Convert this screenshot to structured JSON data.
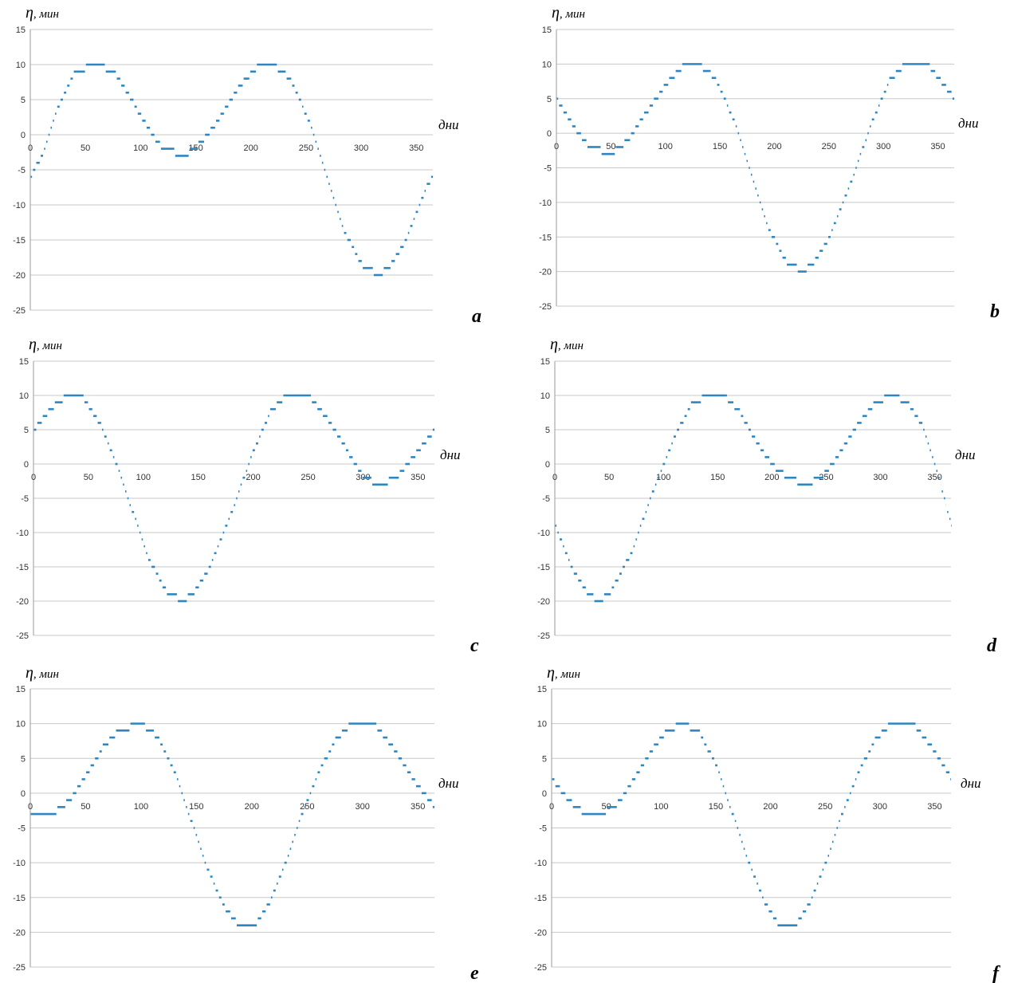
{
  "colors": {
    "series": "#2e86c1",
    "grid": "#c8c8c8",
    "axis": "#9a9a9a"
  },
  "chart_data": [
    {
      "type": "line",
      "panel_label": "a",
      "ylabel_symbol": "η",
      "ylabel_unit": ", мин",
      "xlabel": "дни",
      "xlim": [
        0,
        365
      ],
      "ylim": [
        -25,
        15
      ],
      "yticks": [
        "15",
        "10",
        "5",
        "0",
        "-5",
        "-10",
        "-15",
        "-20",
        "-25"
      ],
      "xticks": [
        "0",
        "50",
        "100",
        "150",
        "200",
        "250",
        "300",
        "350"
      ],
      "grid": true,
      "curve_points": [
        [
          0,
          -6
        ],
        [
          10,
          -3
        ],
        [
          25,
          4
        ],
        [
          40,
          9
        ],
        [
          60,
          10
        ],
        [
          75,
          9
        ],
        [
          95,
          4
        ],
        [
          110,
          0
        ],
        [
          120,
          -2
        ],
        [
          140,
          -3
        ],
        [
          155,
          -1
        ],
        [
          170,
          2
        ],
        [
          190,
          7
        ],
        [
          205,
          9.5
        ],
        [
          220,
          10
        ],
        [
          235,
          8
        ],
        [
          255,
          1
        ],
        [
          270,
          -7
        ],
        [
          285,
          -14
        ],
        [
          300,
          -18.5
        ],
        [
          315,
          -20
        ],
        [
          325,
          -19
        ],
        [
          340,
          -15
        ],
        [
          360,
          -7
        ],
        [
          365,
          -6
        ]
      ]
    },
    {
      "type": "line",
      "panel_label": "b",
      "ylabel_symbol": "η",
      "ylabel_unit": ", мин",
      "xlabel": "дни",
      "xlim": [
        0,
        365
      ],
      "ylim": [
        -25,
        15
      ],
      "yticks": [
        "15",
        "10",
        "5",
        "0",
        "-5",
        "-10",
        "-15",
        "-20",
        "-25"
      ],
      "xticks": [
        "0",
        "50",
        "100",
        "150",
        "200",
        "250",
        "300",
        "350"
      ],
      "grid": true,
      "curve_points": [
        [
          0,
          5
        ],
        [
          15,
          1
        ],
        [
          30,
          -2
        ],
        [
          50,
          -3
        ],
        [
          65,
          -1
        ],
        [
          80,
          2.5
        ],
        [
          100,
          7
        ],
        [
          115,
          9.5
        ],
        [
          130,
          10
        ],
        [
          145,
          8
        ],
        [
          165,
          1
        ],
        [
          180,
          -7
        ],
        [
          195,
          -14
        ],
        [
          210,
          -18.5
        ],
        [
          225,
          -20
        ],
        [
          235,
          -19
        ],
        [
          250,
          -15
        ],
        [
          270,
          -7
        ],
        [
          290,
          2
        ],
        [
          305,
          7.5
        ],
        [
          320,
          10
        ],
        [
          340,
          10
        ],
        [
          365,
          5
        ]
      ]
    },
    {
      "type": "line",
      "panel_label": "c",
      "ylabel_symbol": "η",
      "ylabel_unit": ", мин",
      "xlabel": "дни",
      "xlim": [
        0,
        365
      ],
      "ylim": [
        -25,
        15
      ],
      "yticks": [
        "15",
        "10",
        "5",
        "0",
        "-5",
        "-10",
        "-15",
        "-20",
        "-25"
      ],
      "xticks": [
        "0",
        "50",
        "100",
        "150",
        "200",
        "250",
        "300",
        "350"
      ],
      "grid": true,
      "curve_points": [
        [
          0,
          5
        ],
        [
          15,
          8
        ],
        [
          30,
          10
        ],
        [
          45,
          9.5
        ],
        [
          60,
          6
        ],
        [
          75,
          0
        ],
        [
          90,
          -7
        ],
        [
          105,
          -14
        ],
        [
          120,
          -18.5
        ],
        [
          135,
          -20
        ],
        [
          145,
          -19
        ],
        [
          160,
          -15
        ],
        [
          180,
          -7
        ],
        [
          200,
          2
        ],
        [
          215,
          7.5
        ],
        [
          230,
          10
        ],
        [
          250,
          10
        ],
        [
          265,
          7
        ],
        [
          285,
          2
        ],
        [
          300,
          -2
        ],
        [
          315,
          -3
        ],
        [
          330,
          -2
        ],
        [
          350,
          2
        ],
        [
          365,
          5
        ]
      ]
    },
    {
      "type": "line",
      "panel_label": "d",
      "ylabel_symbol": "η",
      "ylabel_unit": ", мин",
      "xlabel": "дни",
      "xlim": [
        0,
        365
      ],
      "ylim": [
        -25,
        15
      ],
      "yticks": [
        "15",
        "10",
        "5",
        "0",
        "-5",
        "-10",
        "-15",
        "-20",
        "-25"
      ],
      "xticks": [
        "0",
        "50",
        "100",
        "150",
        "200",
        "250",
        "300",
        "350"
      ],
      "grid": true,
      "curve_points": [
        [
          0,
          -9
        ],
        [
          15,
          -15
        ],
        [
          30,
          -19
        ],
        [
          40,
          -20
        ],
        [
          50,
          -19
        ],
        [
          70,
          -13
        ],
        [
          90,
          -4
        ],
        [
          110,
          4
        ],
        [
          125,
          8.5
        ],
        [
          140,
          10
        ],
        [
          155,
          10
        ],
        [
          170,
          7.5
        ],
        [
          190,
          2
        ],
        [
          205,
          -1
        ],
        [
          215,
          -2
        ],
        [
          230,
          -3
        ],
        [
          245,
          -2
        ],
        [
          260,
          1
        ],
        [
          280,
          6
        ],
        [
          295,
          9
        ],
        [
          310,
          10
        ],
        [
          325,
          9
        ],
        [
          340,
          5
        ],
        [
          355,
          -3
        ],
        [
          365,
          -9
        ]
      ]
    },
    {
      "type": "line",
      "panel_label": "e",
      "ylabel_symbol": "η",
      "ylabel_unit": ", мин",
      "xlabel": "дни",
      "xlim": [
        0,
        365
      ],
      "ylim": [
        -25,
        15
      ],
      "yticks": [
        "15",
        "10",
        "5",
        "0",
        "-5",
        "-10",
        "-15",
        "-20",
        "-25"
      ],
      "xticks": [
        "0",
        "50",
        "100",
        "150",
        "200",
        "250",
        "300",
        "350"
      ],
      "grid": true,
      "curve_points": [
        [
          0,
          -3
        ],
        [
          20,
          -3
        ],
        [
          35,
          -1
        ],
        [
          50,
          2.5
        ],
        [
          65,
          6.5
        ],
        [
          80,
          9
        ],
        [
          100,
          10
        ],
        [
          115,
          8
        ],
        [
          130,
          3
        ],
        [
          145,
          -4
        ],
        [
          160,
          -11
        ],
        [
          175,
          -16.5
        ],
        [
          190,
          -19.5
        ],
        [
          200,
          -19.5
        ],
        [
          215,
          -16
        ],
        [
          230,
          -10
        ],
        [
          245,
          -3
        ],
        [
          260,
          3
        ],
        [
          275,
          7.5
        ],
        [
          290,
          10
        ],
        [
          310,
          10
        ],
        [
          325,
          7
        ],
        [
          345,
          2
        ],
        [
          365,
          -2
        ]
      ]
    },
    {
      "type": "line",
      "panel_label": "f",
      "ylabel_symbol": "η",
      "ylabel_unit": ", мин",
      "xlabel": "дни",
      "xlim": [
        0,
        365
      ],
      "ylim": [
        -25,
        15
      ],
      "yticks": [
        "15",
        "10",
        "5",
        "0",
        "-5",
        "-10",
        "-15",
        "-20",
        "-25"
      ],
      "xticks": [
        "0",
        "50",
        "100",
        "150",
        "200",
        "250",
        "300",
        "350"
      ],
      "grid": true,
      "curve_points": [
        [
          0,
          2
        ],
        [
          15,
          -1
        ],
        [
          30,
          -3
        ],
        [
          45,
          -3
        ],
        [
          60,
          -1.5
        ],
        [
          75,
          2
        ],
        [
          90,
          6
        ],
        [
          105,
          9
        ],
        [
          120,
          10
        ],
        [
          135,
          8.5
        ],
        [
          150,
          4
        ],
        [
          165,
          -3
        ],
        [
          180,
          -10
        ],
        [
          195,
          -16
        ],
        [
          210,
          -19.5
        ],
        [
          220,
          -19.5
        ],
        [
          235,
          -16
        ],
        [
          250,
          -10
        ],
        [
          265,
          -3
        ],
        [
          280,
          3
        ],
        [
          295,
          7.5
        ],
        [
          310,
          10
        ],
        [
          330,
          10
        ],
        [
          345,
          7
        ],
        [
          365,
          2
        ]
      ]
    }
  ]
}
